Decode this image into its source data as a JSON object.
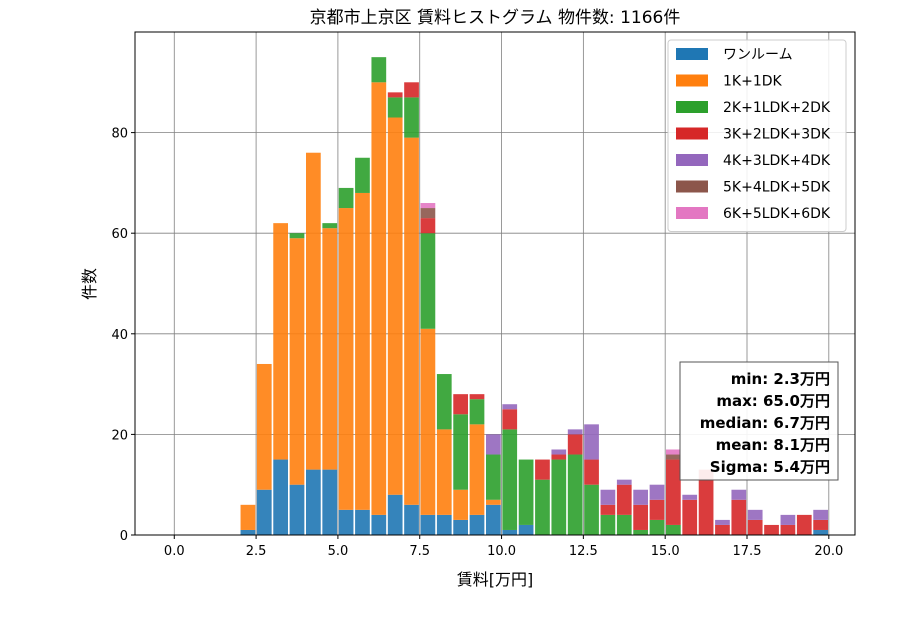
{
  "chart_data": {
    "type": "bar",
    "title": "京都市上京区 賃料ヒストグラム  物件数: 1166件",
    "xlabel": "賃料[万円]",
    "ylabel": "件数",
    "xlim": [
      -1.2,
      20.8
    ],
    "ylim": [
      0,
      100
    ],
    "xticks": [
      {
        "value": 0.0,
        "label": "0.0"
      },
      {
        "value": 2.5,
        "label": "2.5"
      },
      {
        "value": 5.0,
        "label": "5.0"
      },
      {
        "value": 7.5,
        "label": "7.5"
      },
      {
        "value": 10.0,
        "label": "10.0"
      },
      {
        "value": 12.5,
        "label": "12.5"
      },
      {
        "value": 15.0,
        "label": "15.0"
      },
      {
        "value": 17.5,
        "label": "17.5"
      },
      {
        "value": 20.0,
        "label": "20.0"
      }
    ],
    "yticks": [
      {
        "value": 0,
        "label": "0"
      },
      {
        "value": 20,
        "label": "20"
      },
      {
        "value": 40,
        "label": "40"
      },
      {
        "value": 60,
        "label": "60"
      },
      {
        "value": 80,
        "label": "80"
      }
    ],
    "grid": true,
    "stacked": true,
    "legend_position": "top-right",
    "bin_width": 0.5,
    "bins": [
      2.0,
      2.5,
      3.0,
      3.5,
      4.0,
      4.5,
      5.0,
      5.5,
      6.0,
      6.5,
      7.0,
      7.5,
      8.0,
      8.5,
      9.0,
      9.5,
      10.0,
      10.5,
      11.0,
      11.5,
      12.0,
      12.5,
      13.0,
      13.5,
      14.0,
      14.5,
      15.0,
      15.5,
      16.0,
      16.5,
      17.0,
      17.5,
      18.0,
      18.5,
      19.0,
      19.5
    ],
    "series": [
      {
        "name": "ワンルーム",
        "color": "#1f77b4",
        "values": [
          1,
          9,
          15,
          10,
          13,
          13,
          5,
          5,
          4,
          8,
          6,
          4,
          4,
          3,
          4,
          6,
          1,
          2,
          0,
          0,
          0,
          0,
          0,
          0,
          0,
          0,
          0,
          0,
          0,
          0,
          0,
          0,
          0,
          0,
          0,
          1
        ]
      },
      {
        "name": "1K+1DK",
        "color": "#ff7f0e",
        "values": [
          5,
          25,
          47,
          49,
          63,
          48,
          60,
          63,
          86,
          75,
          73,
          37,
          17,
          6,
          18,
          1,
          0,
          0,
          0,
          0,
          0,
          0,
          0,
          0,
          0,
          0,
          0,
          0,
          0,
          0,
          0,
          0,
          0,
          0,
          0,
          0
        ]
      },
      {
        "name": "2K+1LDK+2DK",
        "color": "#2ca02c",
        "values": [
          0,
          0,
          0,
          1,
          0,
          1,
          4,
          7,
          5,
          4,
          8,
          19,
          11,
          15,
          5,
          9,
          20,
          13,
          11,
          15,
          16,
          10,
          4,
          4,
          1,
          3,
          2,
          0,
          0,
          0,
          0,
          0,
          0,
          0,
          0,
          0
        ]
      },
      {
        "name": "3K+2LDK+3DK",
        "color": "#d62728",
        "values": [
          0,
          0,
          0,
          0,
          0,
          0,
          0,
          0,
          0,
          1,
          3,
          3,
          0,
          4,
          1,
          0,
          4,
          0,
          4,
          1,
          4,
          5,
          2,
          6,
          5,
          4,
          13,
          7,
          13,
          2,
          7,
          3,
          2,
          2,
          4,
          2
        ]
      },
      {
        "name": "4K+3LDK+4DK",
        "color": "#9467bd",
        "values": [
          0,
          0,
          0,
          0,
          0,
          0,
          0,
          0,
          0,
          0,
          0,
          0,
          0,
          0,
          0,
          4,
          1,
          0,
          0,
          1,
          1,
          7,
          3,
          1,
          3,
          3,
          0,
          1,
          0,
          1,
          2,
          2,
          0,
          2,
          0,
          2
        ]
      },
      {
        "name": "5K+4LDK+5DK",
        "color": "#8c564b",
        "values": [
          0,
          0,
          0,
          0,
          0,
          0,
          0,
          0,
          0,
          0,
          0,
          2,
          0,
          0,
          0,
          0,
          0,
          0,
          0,
          0,
          0,
          0,
          0,
          0,
          0,
          0,
          1,
          0,
          0,
          0,
          0,
          0,
          0,
          0,
          0,
          0
        ]
      },
      {
        "name": "6K+5LDK+6DK",
        "color": "#e377c2",
        "values": [
          0,
          0,
          0,
          0,
          0,
          0,
          0,
          0,
          0,
          0,
          0,
          1,
          0,
          0,
          0,
          0,
          0,
          0,
          0,
          0,
          0,
          0,
          0,
          0,
          0,
          0,
          1,
          0,
          0,
          0,
          0,
          0,
          0,
          0,
          0,
          0
        ]
      }
    ],
    "stats": [
      "min: 2.3万円",
      "max: 65.0万円",
      "median: 6.7万円",
      "mean: 8.1万円",
      "Sigma: 5.4万円"
    ]
  }
}
